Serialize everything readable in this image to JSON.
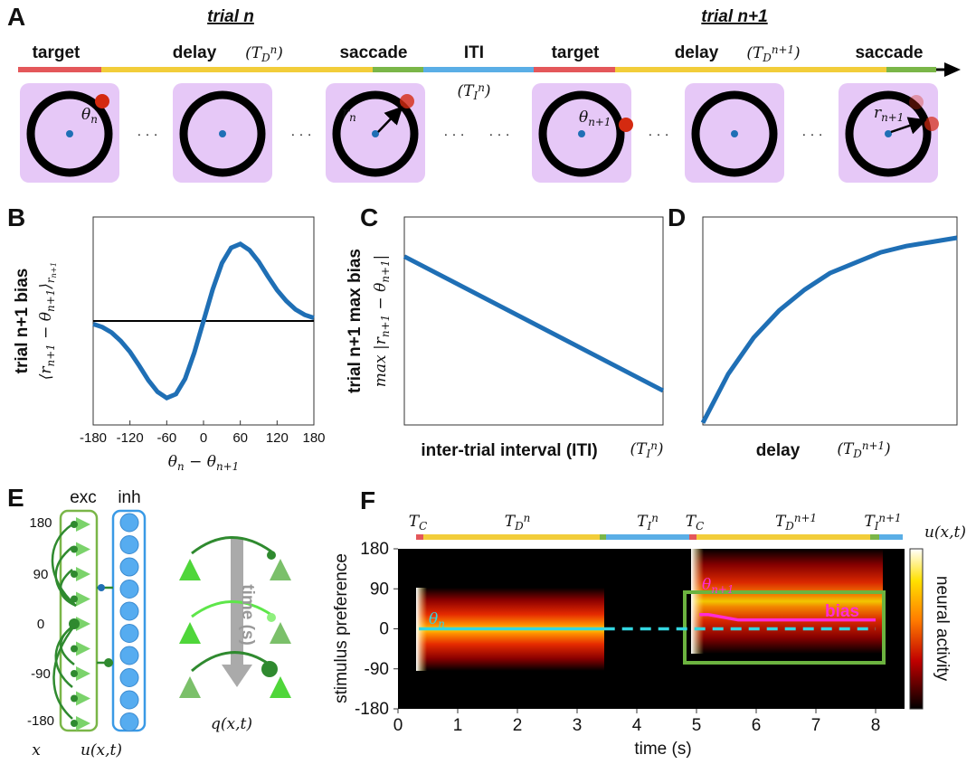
{
  "panel_labels": [
    "A",
    "B",
    "C",
    "D",
    "E",
    "F"
  ],
  "panel_a": {
    "trial_labels": [
      "trial n",
      "trial n+1"
    ],
    "phases": [
      "target",
      "delay",
      "saccade",
      "ITI",
      "target",
      "delay",
      "saccade"
    ],
    "phase_symbols": [
      "(T_{D}^{n})",
      "(T_{D}^{n+1})",
      "(T_{I}^{n})"
    ],
    "annotations": [
      "θ_{n}",
      "r_{n}",
      "θ_{n+1}",
      "r_{n+1}"
    ],
    "ellipsis": "· · ·"
  },
  "chart_data": [
    {
      "type": "line",
      "y_label": "trial n+1 bias",
      "y_sublabel": "⟨r_{n+1} − θ_{n+1}⟩_{r_{n+1}}",
      "x_label": "θ_{n} − θ_{n+1}",
      "x": [
        -180,
        -165,
        -150,
        -135,
        -120,
        -105,
        -90,
        -75,
        -60,
        -45,
        -30,
        -15,
        0,
        15,
        30,
        45,
        60,
        75,
        90,
        105,
        120,
        135,
        150,
        165,
        180
      ],
      "series": [
        {
          "color": "#1f6fb5",
          "values": [
            -0.04,
            -0.08,
            -0.15,
            -0.26,
            -0.4,
            -0.58,
            -0.77,
            -0.92,
            -1.0,
            -0.95,
            -0.75,
            -0.41,
            0,
            0.41,
            0.75,
            0.95,
            1.0,
            0.92,
            0.77,
            0.58,
            0.4,
            0.26,
            0.15,
            0.08,
            0.04
          ]
        }
      ],
      "xlim": [
        -180,
        180
      ],
      "xticks": [
        -180,
        -120,
        -60,
        0,
        60,
        120,
        180
      ],
      "ylim": [
        -1.35,
        1.35
      ],
      "zero_line": true
    },
    {
      "type": "line",
      "y_label": "trial n+1 max bias",
      "y_sublabel": "max |r_{n+1} − θ_{n+1}|",
      "x_label": "inter-trial interval (ITI)",
      "x_symbol": "(T_{I}^{n})",
      "x": [
        0,
        1
      ],
      "series": [
        {
          "color": "#1f6fb5",
          "values": [
            0.81,
            0.165
          ]
        }
      ],
      "xlim": [
        0,
        1
      ],
      "ylim": [
        0,
        1
      ]
    },
    {
      "type": "line",
      "x_label": "delay",
      "x_symbol": "(T_{D}^{n+1})",
      "x": [
        0,
        0.1,
        0.2,
        0.3,
        0.4,
        0.5,
        0.6,
        0.7,
        0.8,
        0.9,
        1
      ],
      "series": [
        {
          "color": "#1f6fb5",
          "values": [
            0.01,
            0.245,
            0.42,
            0.55,
            0.65,
            0.73,
            0.78,
            0.83,
            0.86,
            0.88,
            0.9
          ]
        }
      ],
      "xlim": [
        0,
        1
      ],
      "ylim": [
        0,
        1
      ]
    },
    {
      "type": "heatmap",
      "x_label": "time (s)",
      "y_label": "stimulus preference",
      "xlim": [
        0,
        8.53
      ],
      "xticks": [
        0,
        1,
        2,
        3,
        4,
        5,
        6,
        7,
        8
      ],
      "ylim": [
        -180,
        180
      ],
      "yticks": [
        -180,
        -90,
        0,
        90,
        180
      ],
      "colorbar_label": "neural activity",
      "colorbar_symbol": "u(x,t)",
      "timeline_labels": [
        "T_{C}",
        "T_{D}^{n}",
        "T_{I}^{n}",
        "T_{C}",
        "T_{D}^{n+1}",
        "T_{I}^{n+1}"
      ],
      "annotations": [
        "θ_{n}",
        "θ_{n+1}",
        "bias"
      ],
      "series": [
        {
          "color": "#33d6e0",
          "style": "solid",
          "x": [
            0.35,
            3.45
          ],
          "values": [
            0,
            0
          ]
        },
        {
          "color": "#33d6e0",
          "style": "dashed",
          "x": [
            3.45,
            8.0
          ],
          "values": [
            0,
            0
          ]
        },
        {
          "color": "#ff2bd6",
          "style": "solid",
          "x": [
            5.05,
            5.2,
            5.7,
            8.0
          ],
          "values": [
            32,
            32,
            20,
            20
          ]
        }
      ]
    }
  ],
  "panel_e": {
    "columns": [
      "exc",
      "inh"
    ],
    "x_labels": [
      "180",
      "90",
      "0",
      "-90",
      "-180"
    ],
    "x_symbol": "x",
    "u_symbol": "u(x,t)",
    "time_label": "time (s)",
    "q_symbol": "q(x,t)"
  }
}
